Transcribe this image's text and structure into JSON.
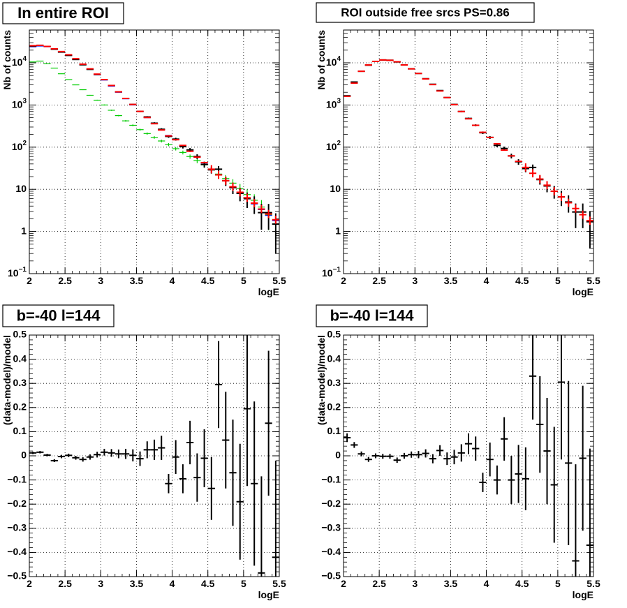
{
  "chart_data": [
    {
      "type": "scatter",
      "title": "In entire ROI",
      "xlabel": "logE",
      "ylabel": "Nb of counts",
      "xlim": [
        2,
        5.5
      ],
      "ylim": [
        0.1,
        60000
      ],
      "yscale": "log",
      "grid": true,
      "xticks": [
        "2",
        "2.5",
        "3",
        "3.5",
        "4",
        "4.5",
        "5",
        "5.5"
      ],
      "yticks": [
        "10^-1",
        "1",
        "10",
        "10^2",
        "10^3",
        "10^4"
      ],
      "series": [
        {
          "color": "#0000ff",
          "x": [
            2.05,
            2.15,
            2.25,
            2.35,
            2.45,
            2.55,
            2.65,
            2.75,
            2.85,
            2.95,
            3.05,
            3.15,
            3.25,
            3.35,
            3.45,
            3.55,
            3.65,
            3.75,
            3.85,
            3.95,
            4.05,
            4.15,
            4.25,
            4.35,
            4.45,
            4.55,
            4.65,
            4.75,
            4.85,
            4.95,
            5.05,
            5.15,
            5.25,
            5.35,
            5.45
          ],
          "y": [
            24000,
            25000,
            24000,
            21000,
            18000,
            15000,
            12000,
            9000,
            7000,
            5200,
            3900,
            2800,
            2000,
            1400,
            1000,
            700,
            500,
            360,
            260,
            190,
            150,
            110,
            80,
            58,
            42,
            30,
            22,
            16,
            11,
            8,
            6,
            4.5,
            3.3,
            2.4,
            1.8
          ],
          "err": [
            0,
            0,
            0,
            0,
            0,
            0,
            0,
            0,
            0,
            0,
            0,
            0,
            0,
            0,
            0,
            0,
            0,
            0,
            0,
            0,
            0,
            0,
            0,
            0,
            0,
            0,
            0,
            0,
            0,
            0,
            0,
            0,
            0,
            0,
            0
          ]
        },
        {
          "color": "#00cc00",
          "x": [
            2.05,
            2.15,
            2.25,
            2.35,
            2.45,
            2.55,
            2.65,
            2.75,
            2.85,
            2.95,
            3.05,
            3.15,
            3.25,
            3.35,
            3.45,
            3.55,
            3.65,
            3.75,
            3.85,
            3.95,
            4.05,
            4.15,
            4.25,
            4.35,
            4.45,
            4.55,
            4.65,
            4.75,
            4.85,
            4.95,
            5.05,
            5.15,
            5.25,
            5.35,
            5.45
          ],
          "y": [
            10500,
            11000,
            9500,
            7500,
            5500,
            4000,
            3000,
            2300,
            1700,
            1300,
            1000,
            750,
            560,
            420,
            330,
            260,
            210,
            170,
            140,
            115,
            92,
            75,
            60,
            48,
            38,
            30,
            23,
            18,
            14,
            10.5,
            7.5,
            5.5,
            3.8,
            2.5,
            1.5
          ],
          "err": [
            0,
            0,
            0,
            0,
            0,
            0,
            0,
            0,
            0,
            0,
            0,
            0,
            0,
            0,
            0,
            0,
            0,
            0,
            0,
            0,
            0,
            0,
            0,
            0,
            0,
            0,
            0,
            0,
            0,
            0,
            0,
            0,
            0,
            0,
            0
          ]
        },
        {
          "color": "#000000",
          "x": [
            2.05,
            2.15,
            2.25,
            2.35,
            2.45,
            2.55,
            2.65,
            2.75,
            2.85,
            2.95,
            3.05,
            3.15,
            3.25,
            3.35,
            3.45,
            3.55,
            3.65,
            3.75,
            3.85,
            3.95,
            4.05,
            4.15,
            4.25,
            4.35,
            4.45,
            4.55,
            4.65,
            4.75,
            4.85,
            4.95,
            5.05,
            5.15,
            5.25,
            5.35,
            5.45
          ],
          "y": [
            25000,
            26000,
            24500,
            21000,
            18000,
            15000,
            12000,
            9000,
            7000,
            5300,
            4000,
            2900,
            2050,
            1430,
            1030,
            705,
            520,
            370,
            265,
            180,
            155,
            103,
            86,
            60,
            39,
            29,
            30,
            16,
            11,
            8,
            6,
            4.7,
            2.8,
            2.8,
            1.5
          ],
          "err": [
            150,
            160,
            155,
            145,
            135,
            120,
            110,
            95,
            85,
            73,
            63,
            54,
            45,
            38,
            32,
            27,
            23,
            19,
            16,
            13,
            12,
            10,
            9.3,
            7.7,
            6.2,
            5.4,
            5.5,
            4,
            3.3,
            2.8,
            2.4,
            2.1,
            1.7,
            1.7,
            1.2
          ]
        },
        {
          "color": "#ff0000",
          "x": [
            2.05,
            2.15,
            2.25,
            2.35,
            2.45,
            2.55,
            2.65,
            2.75,
            2.85,
            2.95,
            3.05,
            3.15,
            3.25,
            3.35,
            3.45,
            3.55,
            3.65,
            3.75,
            3.85,
            3.95,
            4.05,
            4.15,
            4.25,
            4.35,
            4.45,
            4.55,
            4.65,
            4.75,
            4.85,
            4.95,
            5.05,
            5.15,
            5.25,
            5.35,
            5.45
          ],
          "y": [
            25500,
            26000,
            24500,
            21500,
            18500,
            15500,
            12500,
            9300,
            7200,
            5400,
            4000,
            2900,
            2050,
            1430,
            1030,
            705,
            505,
            360,
            255,
            185,
            150,
            110,
            80,
            58,
            43,
            30,
            22,
            16,
            11.5,
            8.5,
            6.3,
            4.7,
            3.4,
            2.6,
            1.9
          ],
          "err": [
            0,
            0,
            0,
            0,
            0,
            0,
            0,
            0,
            0,
            0,
            0,
            0,
            0,
            0,
            0,
            0,
            0,
            0,
            0,
            0,
            0,
            0,
            0,
            0,
            0,
            0,
            0,
            0,
            0,
            0,
            0,
            0,
            0,
            0,
            0
          ]
        }
      ]
    },
    {
      "type": "scatter",
      "title": "ROI outside free srcs PS=0.86",
      "xlabel": "logE",
      "ylabel": "Nb of counts",
      "xlim": [
        2,
        5.5
      ],
      "ylim": [
        0.1,
        60000
      ],
      "yscale": "log",
      "grid": true,
      "xticks": [
        "2",
        "2.5",
        "3",
        "3.5",
        "4",
        "4.5",
        "5",
        "5.5"
      ],
      "yticks": [
        "10^-1",
        "1",
        "10",
        "10^2",
        "10^3",
        "10^4"
      ],
      "series": [
        {
          "color": "#000000",
          "x": [
            2.05,
            2.15,
            2.25,
            2.35,
            2.45,
            2.55,
            2.65,
            2.75,
            2.85,
            2.95,
            3.05,
            3.15,
            3.25,
            3.35,
            3.45,
            3.55,
            3.65,
            3.75,
            3.85,
            3.95,
            4.05,
            4.15,
            4.25,
            4.35,
            4.45,
            4.55,
            4.65,
            4.75,
            4.85,
            4.95,
            5.05,
            5.15,
            5.25,
            5.35,
            5.45
          ],
          "y": [
            1650,
            3500,
            6300,
            8800,
            10800,
            11700,
            11500,
            10500,
            8900,
            7200,
            5600,
            4200,
            3100,
            2200,
            1500,
            1030,
            700,
            480,
            330,
            220,
            170,
            110,
            93,
            62,
            45,
            31,
            33,
            17,
            12,
            9,
            6.6,
            5,
            2.9,
            2.9,
            1.7
          ],
          "err": [
            40,
            60,
            80,
            95,
            105,
            110,
            108,
            103,
            95,
            85,
            75,
            65,
            56,
            47,
            39,
            32,
            27,
            22,
            18,
            15,
            13,
            10.5,
            9.6,
            7.9,
            6.7,
            5.6,
            5.7,
            4.1,
            3.5,
            3,
            2.6,
            2.2,
            1.7,
            1.7,
            1.3
          ]
        },
        {
          "color": "#ff0000",
          "x": [
            2.05,
            2.15,
            2.25,
            2.35,
            2.45,
            2.55,
            2.65,
            2.75,
            2.85,
            2.95,
            3.05,
            3.15,
            3.25,
            3.35,
            3.45,
            3.55,
            3.65,
            3.75,
            3.85,
            3.95,
            4.05,
            4.15,
            4.25,
            4.35,
            4.45,
            4.55,
            4.65,
            4.75,
            4.85,
            4.95,
            5.05,
            5.15,
            5.25,
            5.35,
            5.45
          ],
          "y": [
            1600,
            3300,
            6300,
            8900,
            10800,
            11700,
            11500,
            10600,
            8900,
            7200,
            5600,
            4150,
            3050,
            2150,
            1500,
            1020,
            700,
            470,
            330,
            225,
            170,
            120,
            85,
            62,
            46,
            33,
            24,
            17.5,
            12.5,
            9,
            6.6,
            4.8,
            3.5,
            2.5,
            1.8
          ],
          "err": [
            0,
            0,
            0,
            0,
            0,
            0,
            0,
            0,
            0,
            0,
            0,
            0,
            0,
            0,
            0,
            0,
            0,
            0,
            0,
            0,
            0,
            0,
            0,
            0,
            0,
            0,
            0,
            0,
            0,
            0,
            0,
            0,
            0,
            0,
            0
          ]
        }
      ]
    },
    {
      "type": "scatter",
      "title": "b=-40 l=144",
      "xlabel": "logE",
      "ylabel": "(data-model)/model",
      "xlim": [
        2,
        5.5
      ],
      "ylim": [
        -0.5,
        0.5
      ],
      "grid": true,
      "xticks": [
        "2",
        "2.5",
        "3",
        "3.5",
        "4",
        "4.5",
        "5",
        "5.5"
      ],
      "yticks": [
        "−0.5",
        "−0.4",
        "−0.3",
        "−0.2",
        "−0.1",
        "0",
        "0.1",
        "0.2",
        "0.3",
        "0.4",
        "0.5"
      ],
      "series": [
        {
          "color": "#000000",
          "x": [
            2.05,
            2.15,
            2.25,
            2.35,
            2.45,
            2.55,
            2.65,
            2.75,
            2.85,
            2.95,
            3.05,
            3.15,
            3.25,
            3.35,
            3.45,
            3.55,
            3.65,
            3.75,
            3.85,
            3.95,
            4.05,
            4.15,
            4.25,
            4.35,
            4.45,
            4.55,
            4.65,
            4.75,
            4.85,
            4.95,
            5.05,
            5.15,
            5.25,
            5.35,
            5.45
          ],
          "y": [
            0.012,
            0.015,
            0.003,
            -0.02,
            -0.003,
            0.002,
            -0.008,
            -0.015,
            -0.005,
            0.005,
            0.015,
            0.012,
            0.008,
            0.008,
            0.002,
            -0.012,
            0.025,
            0.025,
            0.033,
            -0.115,
            -0.005,
            -0.095,
            0.055,
            -0.09,
            -0.01,
            -0.135,
            0.295,
            0.065,
            -0.07,
            -0.19,
            0.195,
            -0.115,
            -0.485,
            0.135,
            -0.42
          ],
          "err": [
            0.005,
            0.005,
            0.005,
            0.006,
            0.007,
            0.007,
            0.008,
            0.009,
            0.011,
            0.012,
            0.014,
            0.016,
            0.018,
            0.021,
            0.025,
            0.03,
            0.035,
            0.042,
            0.05,
            0.04,
            0.07,
            0.06,
            0.09,
            0.1,
            0.12,
            0.13,
            0.18,
            0.2,
            0.22,
            0.24,
            0.32,
            0.34,
            0.4,
            0.3,
            0.4
          ]
        }
      ]
    },
    {
      "type": "scatter",
      "title": "b=-40 l=144",
      "xlabel": "logE",
      "ylabel": "(data-model)/model",
      "xlim": [
        2,
        5.5
      ],
      "ylim": [
        -0.5,
        0.5
      ],
      "grid": true,
      "xticks": [
        "2",
        "2.5",
        "3",
        "3.5",
        "4",
        "4.5",
        "5",
        "5.5"
      ],
      "yticks": [
        "−0.5",
        "−0.4",
        "−0.3",
        "−0.2",
        "−0.1",
        "0",
        "0.1",
        "0.2",
        "0.3",
        "0.4",
        "0.5"
      ],
      "series": [
        {
          "color": "#000000",
          "x": [
            2.05,
            2.15,
            2.25,
            2.35,
            2.45,
            2.55,
            2.65,
            2.75,
            2.85,
            2.95,
            3.05,
            3.15,
            3.25,
            3.35,
            3.45,
            3.55,
            3.65,
            3.75,
            3.85,
            3.95,
            4.05,
            4.15,
            4.25,
            4.35,
            4.45,
            4.55,
            4.65,
            4.75,
            4.85,
            4.95,
            5.05,
            5.15,
            5.25,
            5.35,
            5.45
          ],
          "y": [
            0.075,
            0.045,
            0.008,
            -0.015,
            0.0,
            -0.002,
            -0.002,
            -0.018,
            0.0,
            0.005,
            0.005,
            0.01,
            -0.012,
            0.022,
            -0.012,
            -0.005,
            0.012,
            0.05,
            0.03,
            -0.11,
            -0.015,
            -0.1,
            0.07,
            -0.1,
            -0.075,
            -0.095,
            0.33,
            0.13,
            0.02,
            -0.12,
            0.305,
            -0.03,
            -0.435,
            -0.01,
            -0.37
          ],
          "err": [
            0.018,
            0.012,
            0.01,
            0.01,
            0.01,
            0.01,
            0.01,
            0.011,
            0.012,
            0.013,
            0.015,
            0.017,
            0.019,
            0.022,
            0.026,
            0.03,
            0.036,
            0.043,
            0.05,
            0.04,
            0.07,
            0.06,
            0.09,
            0.1,
            0.12,
            0.13,
            0.18,
            0.2,
            0.22,
            0.24,
            0.32,
            0.34,
            0.4,
            0.3,
            0.4
          ]
        }
      ]
    }
  ]
}
